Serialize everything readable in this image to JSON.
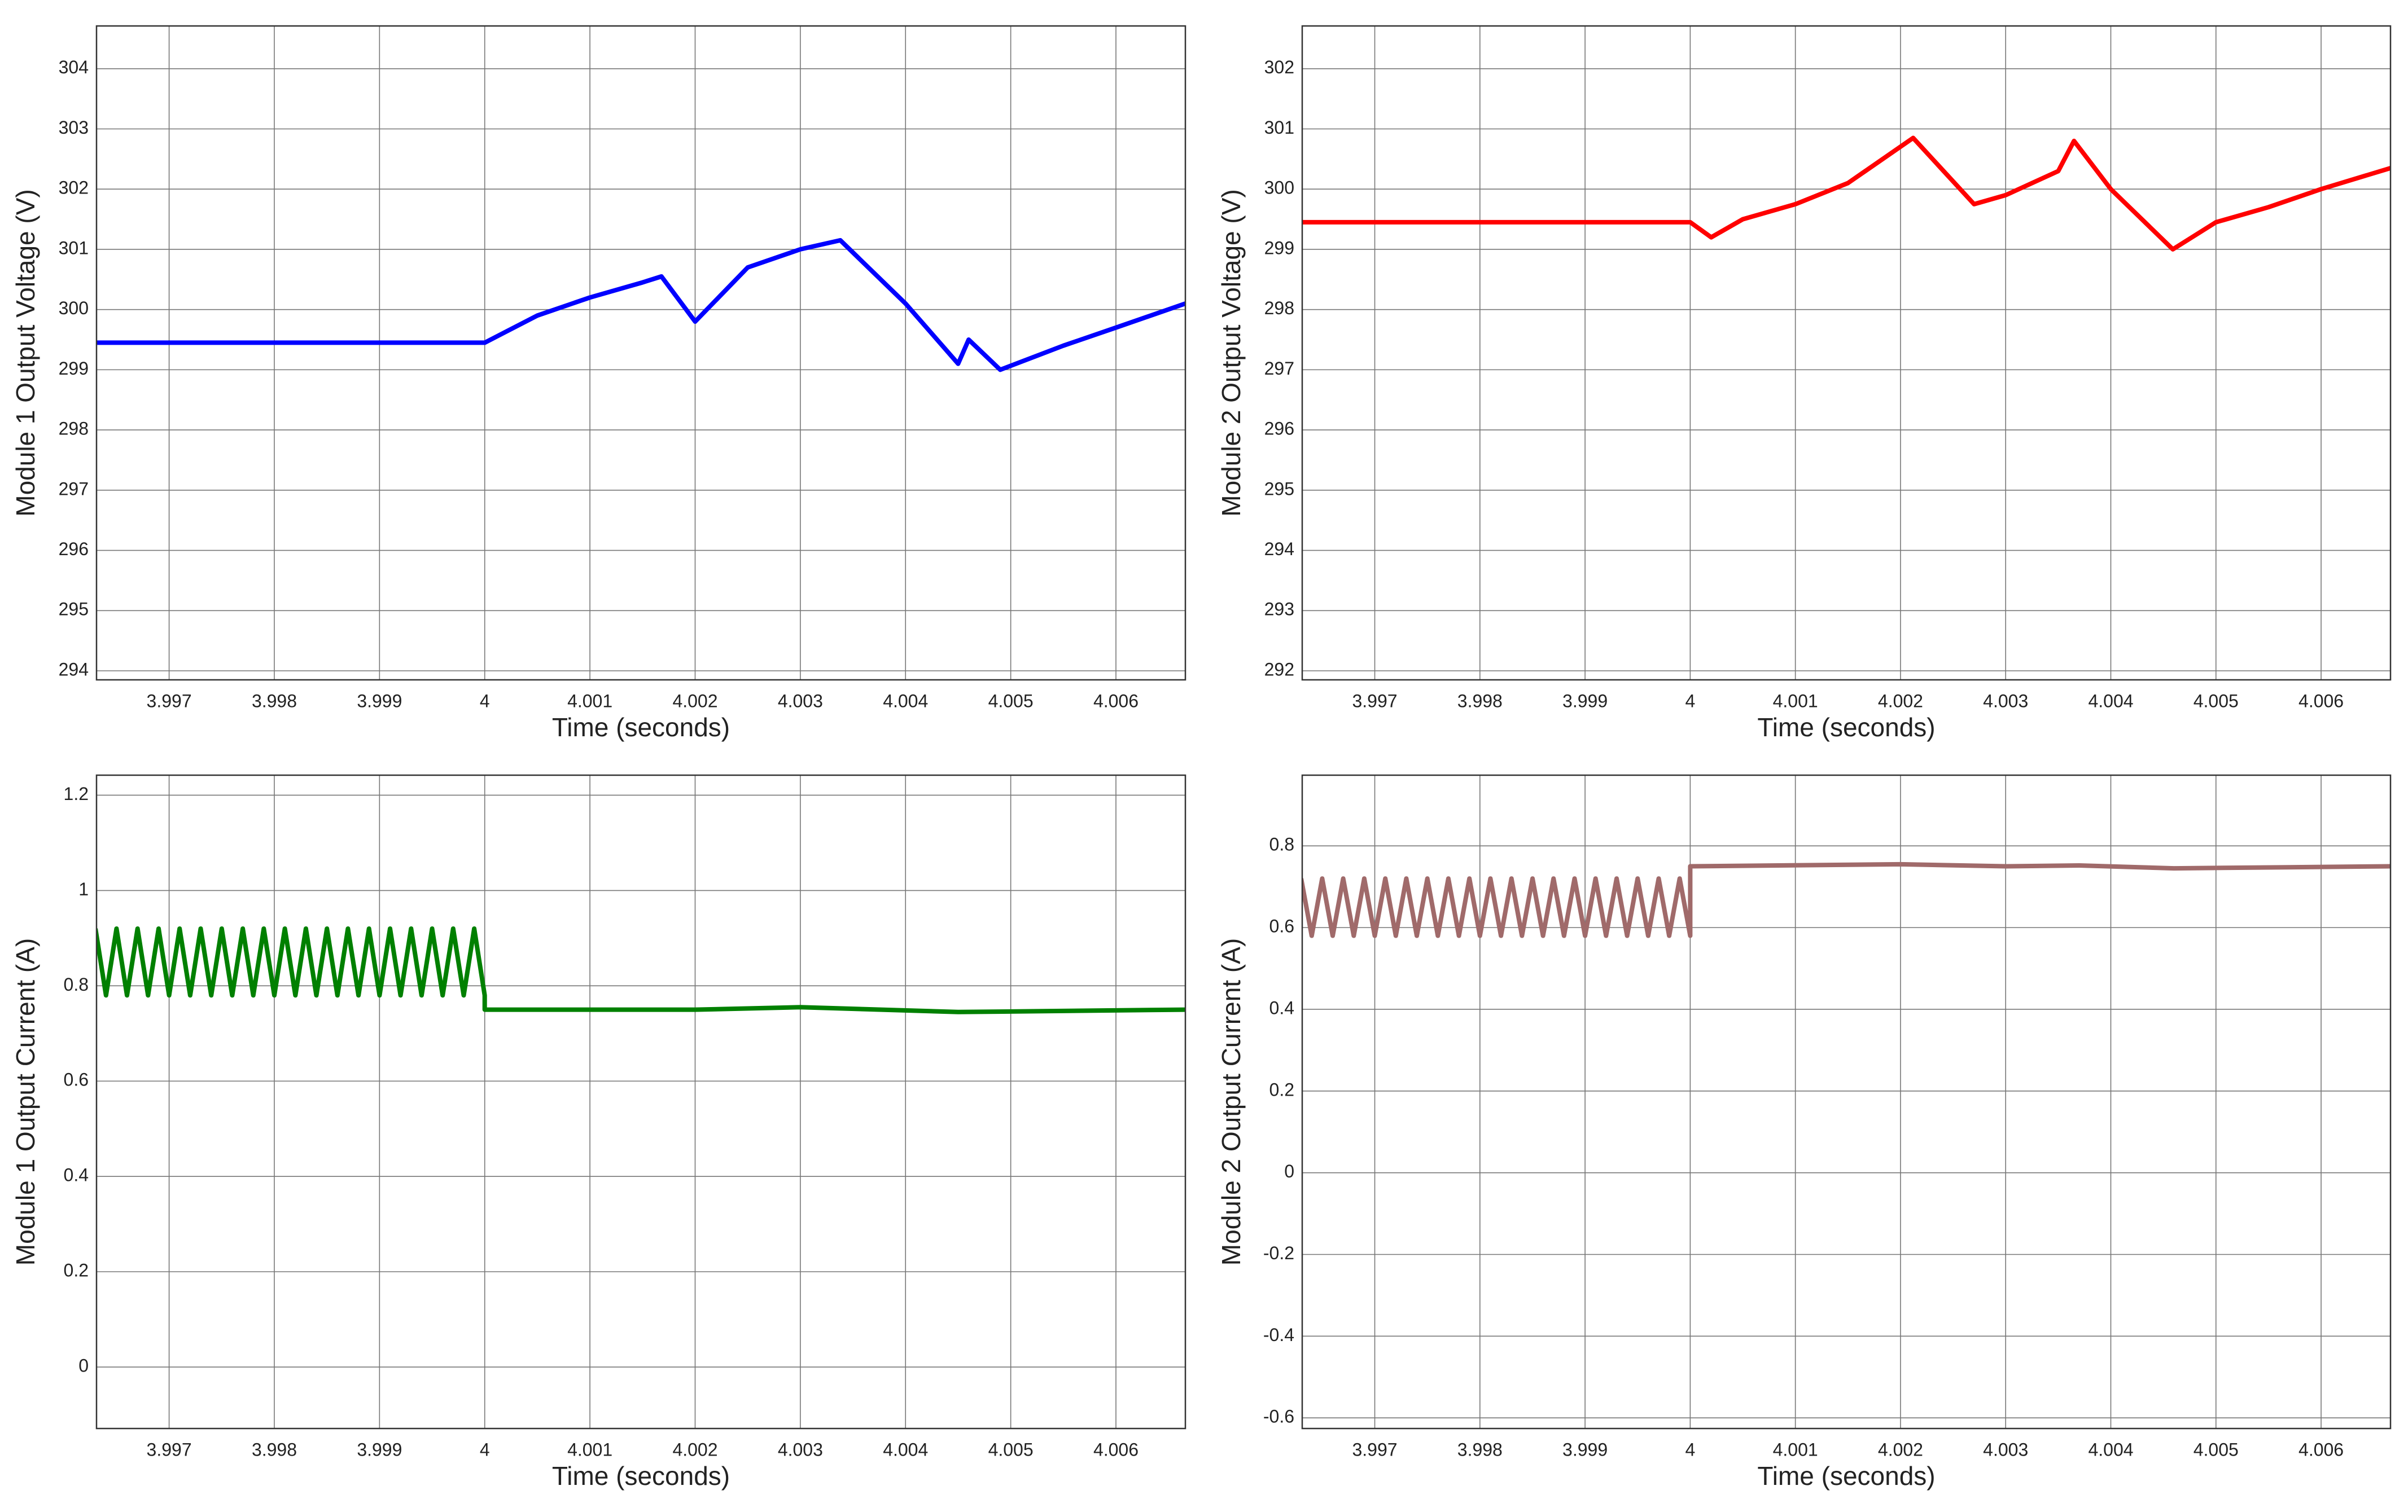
{
  "chart_data": [
    {
      "type": "line",
      "xlabel": "Time (seconds)",
      "ylabel": "Module 1 Output Voltage (V)",
      "color": "#0000ff",
      "x": [
        3.9963,
        3.9975,
        3.999,
        4,
        4.0005,
        4.001,
        4.0015,
        4.00168,
        4.002,
        4.0025,
        4.003,
        4.00338,
        4.004,
        4.0045,
        4.0046,
        4.0049,
        4.0055,
        4.006,
        4.00666
      ],
      "values": [
        299.45,
        299.45,
        299.45,
        299.45,
        299.9,
        300.2,
        300.45,
        300.55,
        299.8,
        300.7,
        301.0,
        301.15,
        300.1,
        299.1,
        299.5,
        299.0,
        299.4,
        299.7,
        300.1
      ],
      "xlim": [
        3.99631,
        4.00666
      ],
      "ylim": [
        293.85,
        304.71
      ],
      "xticks": [
        3.997,
        3.998,
        3.999,
        4,
        4.001,
        4.002,
        4.003,
        4.004,
        4.005,
        4.006
      ],
      "yticks": [
        294,
        295,
        296,
        297,
        298,
        299,
        300,
        301,
        302,
        303,
        304
      ],
      "grid": true
    },
    {
      "type": "line",
      "xlabel": "Time (seconds)",
      "ylabel": "Module 2 Output Voltage (V)",
      "color": "#ff0000",
      "x": [
        3.9963,
        3.9975,
        3.999,
        4,
        4.0002,
        4.0005,
        4.001,
        4.0015,
        4.00212,
        4.0027,
        4.003,
        4.0035,
        4.00365,
        4.004,
        4.00459,
        4.005,
        4.0055,
        4.006,
        4.00666
      ],
      "values": [
        299.45,
        299.45,
        299.45,
        299.45,
        299.2,
        299.5,
        299.75,
        300.1,
        300.85,
        299.75,
        299.9,
        300.3,
        300.8,
        300.0,
        299.0,
        299.45,
        299.7,
        300.0,
        300.35
      ],
      "xlim": [
        3.99631,
        4.00666
      ],
      "ylim": [
        291.85,
        302.71
      ],
      "xticks": [
        3.997,
        3.998,
        3.999,
        4,
        4.001,
        4.002,
        4.003,
        4.004,
        4.005,
        4.006
      ],
      "yticks": [
        292,
        293,
        294,
        295,
        296,
        297,
        298,
        299,
        300,
        301,
        302
      ],
      "grid": true
    },
    {
      "type": "line",
      "xlabel": "Time (seconds)",
      "ylabel": "Module 1 Output Current (A)",
      "color": "#008000",
      "x": [
        3.9963,
        3.9964,
        3.9965,
        3.9966,
        3.9967,
        3.9968,
        3.9969,
        3.997,
        3.9971,
        3.9972,
        3.9973,
        3.9974,
        3.9975,
        3.9976,
        3.9977,
        3.9978,
        3.9979,
        3.998,
        3.9981,
        3.9982,
        3.9983,
        3.9984,
        3.9985,
        3.9986,
        3.9987,
        3.9988,
        3.9989,
        3.999,
        3.9991,
        3.9992,
        3.9993,
        3.9994,
        3.9995,
        3.9996,
        3.9997,
        3.9998,
        3.9999,
        4,
        4,
        4.001,
        4.002,
        4.003,
        4.0045,
        4.00666
      ],
      "values": [
        0.92,
        0.78,
        0.92,
        0.78,
        0.92,
        0.78,
        0.92,
        0.78,
        0.92,
        0.78,
        0.92,
        0.78,
        0.92,
        0.78,
        0.92,
        0.78,
        0.92,
        0.78,
        0.92,
        0.78,
        0.92,
        0.78,
        0.92,
        0.78,
        0.92,
        0.78,
        0.92,
        0.78,
        0.92,
        0.78,
        0.92,
        0.78,
        0.92,
        0.78,
        0.92,
        0.78,
        0.92,
        0.78,
        0.75,
        0.75,
        0.75,
        0.755,
        0.745,
        0.75
      ],
      "xlim": [
        3.99631,
        4.00666
      ],
      "ylim": [
        -0.129,
        1.242
      ],
      "xticks": [
        3.997,
        3.998,
        3.999,
        4,
        4.001,
        4.002,
        4.003,
        4.004,
        4.005,
        4.006
      ],
      "yticks": [
        0,
        0.2,
        0.4,
        0.6,
        0.8,
        1,
        1.2
      ],
      "grid": true
    },
    {
      "type": "line",
      "xlabel": "Time (seconds)",
      "ylabel": "Module 2 Output Current (A)",
      "color": "#a06a6a",
      "x": [
        3.9963,
        3.9964,
        3.9965,
        3.9966,
        3.9967,
        3.9968,
        3.9969,
        3.997,
        3.9971,
        3.9972,
        3.9973,
        3.9974,
        3.9975,
        3.9976,
        3.9977,
        3.9978,
        3.9979,
        3.998,
        3.9981,
        3.9982,
        3.9983,
        3.9984,
        3.9985,
        3.9986,
        3.9987,
        3.9988,
        3.9989,
        3.999,
        3.9991,
        3.9992,
        3.9993,
        3.9994,
        3.9995,
        3.9996,
        3.9997,
        3.9998,
        3.9999,
        4,
        4,
        4.002,
        4.003,
        4.0037,
        4.0046,
        4.00666
      ],
      "values": [
        0.72,
        0.58,
        0.72,
        0.58,
        0.72,
        0.58,
        0.72,
        0.58,
        0.72,
        0.58,
        0.72,
        0.58,
        0.72,
        0.58,
        0.72,
        0.58,
        0.72,
        0.58,
        0.72,
        0.58,
        0.72,
        0.58,
        0.72,
        0.58,
        0.72,
        0.58,
        0.72,
        0.58,
        0.72,
        0.58,
        0.72,
        0.58,
        0.72,
        0.58,
        0.72,
        0.58,
        0.72,
        0.58,
        0.75,
        0.755,
        0.75,
        0.752,
        0.745,
        0.75
      ],
      "xlim": [
        3.99631,
        4.00666
      ],
      "ylim": [
        -0.626,
        0.973
      ],
      "xticks": [
        3.997,
        3.998,
        3.999,
        4,
        4.001,
        4.002,
        4.003,
        4.004,
        4.005,
        4.006
      ],
      "yticks": [
        -0.6,
        -0.4,
        -0.2,
        0,
        0.2,
        0.4,
        0.6,
        0.8
      ],
      "grid": true
    }
  ]
}
